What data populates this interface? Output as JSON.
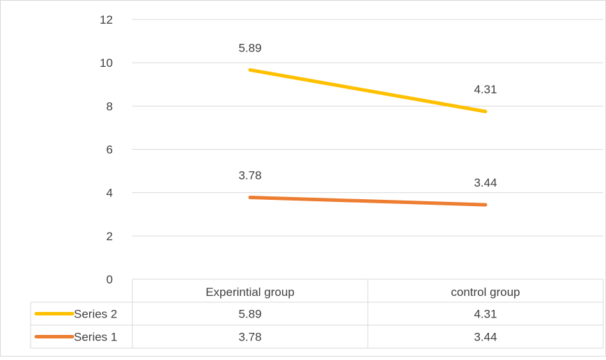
{
  "chart_data": {
    "type": "line",
    "stacked": true,
    "categories": [
      "Experintial group",
      "control group"
    ],
    "series": [
      {
        "name": "Series 2",
        "values": [
          5.89,
          4.31
        ],
        "color": "#FFC000"
      },
      {
        "name": "Series 1",
        "values": [
          3.78,
          3.44
        ],
        "color": "#ED7D31"
      }
    ],
    "ylim": [
      0,
      12
    ],
    "yticks": [
      "0",
      "2",
      "4",
      "6",
      "8",
      "10",
      "12"
    ],
    "grid": true,
    "legend": "data-table",
    "title": "",
    "xlabel": "",
    "ylabel": ""
  }
}
